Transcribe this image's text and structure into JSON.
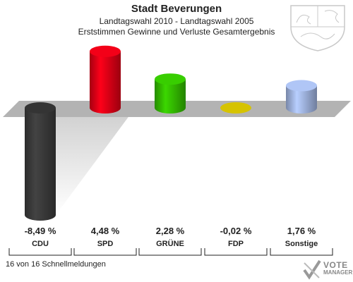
{
  "header": {
    "title": "Stadt Beverungen",
    "subtitle1": "Landtagswahl 2010 - Landtagswahl 2005",
    "subtitle2": "Erststimmen Gewinne und Verluste Gesamtergebnis"
  },
  "footer": {
    "status": "16 von 16 Schnellmeldungen"
  },
  "logo": {
    "line1": "VOTE",
    "line2": "MANAGER"
  },
  "colors": {
    "CDU": "#3a3a3a",
    "SPD": "#dd0016",
    "GRUENE": "#33bb00",
    "FDP": "#d6c300",
    "Sonstige": "#a0b4e0",
    "baseline": "#b3b3b3"
  },
  "chart_data": {
    "type": "bar",
    "title": "Stadt Beverungen",
    "categories": [
      "CDU",
      "SPD",
      "GRÜNE",
      "FDP",
      "Sonstige"
    ],
    "values": [
      -8.49,
      4.48,
      2.28,
      -0.02,
      1.76
    ],
    "value_labels": [
      "-8,49 %",
      "4,48 %",
      "2,28 %",
      "-0,02 %",
      "1,76 %"
    ],
    "unit": "%",
    "grid": false,
    "legend": "none"
  }
}
